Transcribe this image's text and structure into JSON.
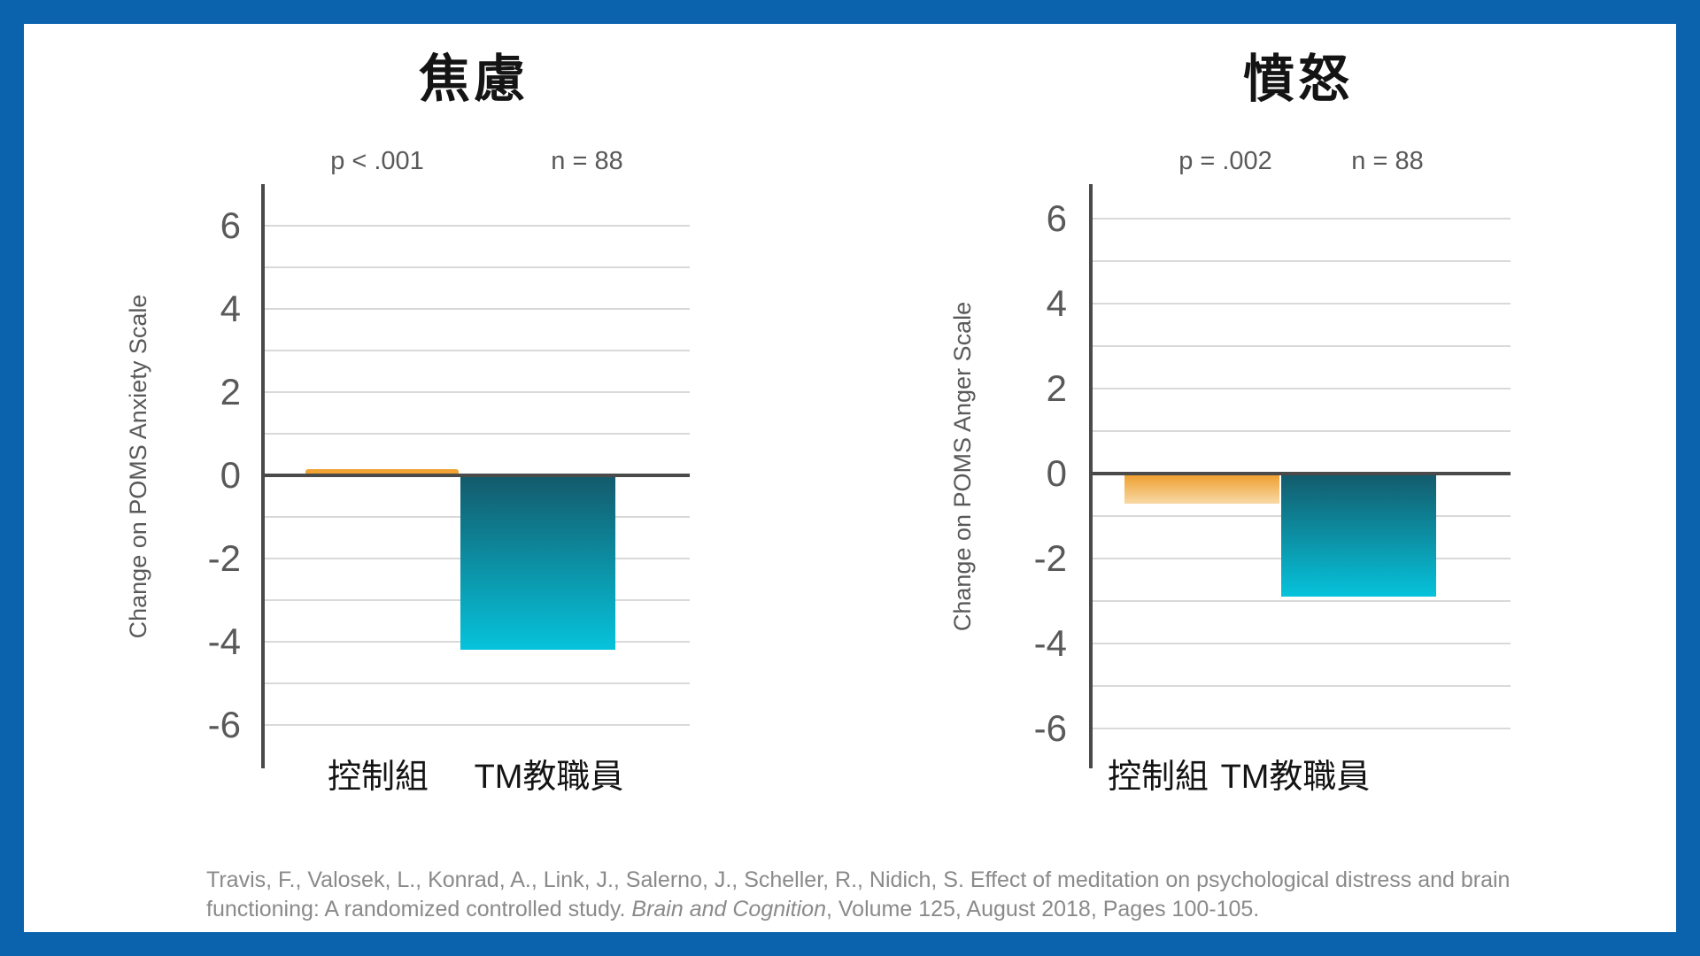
{
  "frame": {
    "border_color": "#0B63AE",
    "background": "#FFFFFF"
  },
  "colors": {
    "control_bar_solid": "#F0A232",
    "control_bar_gradient_top": "#EE9D2B",
    "control_bar_gradient_bottom": "#F8D9A6",
    "tm_bar_gradient_top": "#135A6B",
    "tm_bar_gradient_bottom": "#06C3DB",
    "axis_line": "#4A4A4A",
    "gridline": "#D9D9D9",
    "tick_text": "#595959",
    "stat_text": "#595959",
    "title_text": "#141414",
    "category_text": "#141414",
    "citation_text": "#8A8A8A"
  },
  "chart_data": [
    {
      "type": "bar",
      "title": "焦慮",
      "p_label": "p < .001",
      "n_label": "n = 88",
      "ylabel": "Change on POMS Anxiety Scale",
      "categories": [
        "控制組",
        "TM教職員"
      ],
      "values": [
        0.15,
        -4.2
      ],
      "yticks": [
        6,
        4,
        2,
        0,
        -2,
        -4,
        -6
      ],
      "ylim": [
        -7,
        7
      ],
      "grid": true,
      "legend": "none"
    },
    {
      "type": "bar",
      "title": "憤怒",
      "p_label": "p = .002",
      "n_label": "n = 88",
      "ylabel": "Change on POMS Anger Scale",
      "categories": [
        "控制組",
        "TM教職員"
      ],
      "values": [
        -0.7,
        -2.9
      ],
      "yticks": [
        6,
        4,
        2,
        0,
        -2,
        -4,
        -6
      ],
      "ylim": [
        -7,
        7
      ],
      "grid": true,
      "legend": "none"
    }
  ],
  "citation": {
    "line1": "Travis, F., Valosek, L., Konrad, A., Link, J., Salerno, J., Scheller, R., Nidich, S. Effect of meditation on psychological distress and brain",
    "line2_pre": "functioning: A randomized controlled study. ",
    "line2_italic": "Brain and Cognition",
    "line2_post": ", Volume 125, August 2018, Pages 100-105."
  }
}
